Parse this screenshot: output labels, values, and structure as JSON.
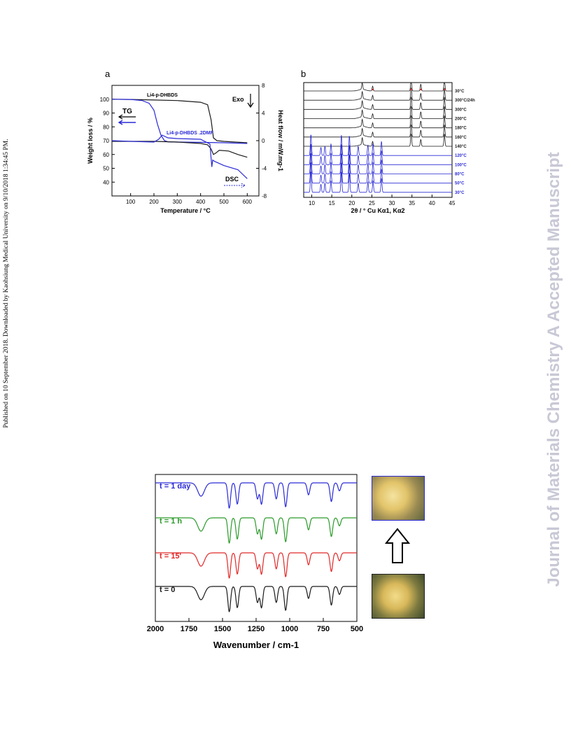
{
  "sidebar_left": "Published on 10 September 2018. Downloaded by Kaohsiung Medical University on 9/10/2018 1:34:45 PM.",
  "watermark": "Journal of Materials Chemistry A Accepted Manuscript",
  "colors": {
    "black": "#1a1a1a",
    "blue": "#2a2ad6",
    "green": "#2a9a2a",
    "red": "#e02828",
    "watermark": "#c8c8d6"
  },
  "chart_data": [
    {
      "panel_label": "a",
      "type": "line",
      "xlabel": "Temperature / °C",
      "ylabel_left": "Weight loss / %",
      "ylabel_right": "Heat flow / mW.mg-1",
      "xlim": [
        20,
        650
      ],
      "ylim_left": [
        30,
        110
      ],
      "ylim_right": [
        -8,
        8
      ],
      "x_ticks": [
        "100",
        "200",
        "300",
        "400",
        "500",
        "600"
      ],
      "y_ticks_left": [
        "100",
        "90",
        "80",
        "70",
        "60",
        "50",
        "40"
      ],
      "y_ticks_right": [
        "8",
        "4",
        "0",
        "-4",
        "-8"
      ],
      "annotations": {
        "exo": "Exo",
        "tg": "TG",
        "dsc": "DSC",
        "label1": "Li4-p-DHBDS",
        "label2": "Li4-p-DHBDS .2DMF"
      },
      "series": [
        {
          "name": "Li4-p-DHBDS",
          "axis": "left",
          "color": "black",
          "x": [
            20,
            100,
            200,
            300,
            400,
            430,
            445,
            455,
            470,
            500,
            600
          ],
          "y": [
            100,
            99.8,
            99.4,
            99,
            97.8,
            96,
            85,
            72,
            70,
            69.5,
            68.5
          ]
        },
        {
          "name": "Li4-p-DHBDS .2DMF",
          "axis": "left",
          "color": "blue",
          "x": [
            20,
            100,
            150,
            180,
            200,
            215,
            230,
            245,
            260,
            300,
            400,
            500,
            600
          ],
          "y": [
            100,
            99.8,
            99,
            97,
            92,
            82,
            74,
            70,
            69.2,
            69,
            68.8,
            68.5,
            68
          ]
        },
        {
          "name": "DSC Li4-p-DHBDS",
          "axis": "right",
          "color": "black",
          "x": [
            20,
            200,
            300,
            400,
            430,
            445,
            455,
            465,
            480,
            520,
            560,
            600
          ],
          "y": [
            -0.1,
            -0.1,
            -0.2,
            -0.4,
            -0.6,
            -1.2,
            -2,
            -1.8,
            -1.4,
            -1.5,
            -2,
            -2.4
          ]
        },
        {
          "name": "DSC Li4-p-DHBDS .2DMF",
          "axis": "right",
          "color": "blue",
          "x": [
            20,
            100,
            200,
            220,
            235,
            260,
            300,
            400,
            440,
            448,
            452,
            460,
            500,
            560,
            600
          ],
          "y": [
            0,
            -0.1,
            -0.2,
            0.2,
            0.8,
            0.4,
            0.3,
            0.2,
            -0.5,
            -3.8,
            -2.8,
            -3,
            -3.6,
            -4.2,
            -5.5
          ]
        }
      ]
    },
    {
      "panel_label": "b",
      "type": "line",
      "xlabel": "2θ / ° Cu Kα1, Kα2",
      "xlim": [
        8,
        45
      ],
      "x_ticks": [
        "10",
        "15",
        "20",
        "25",
        "30",
        "35",
        "40",
        "45"
      ],
      "temperatures": [
        "30°C",
        "300°C/24h",
        "300°C",
        "200°C",
        "180°C",
        "160°C",
        "140°C",
        "120°C",
        "100°C",
        "80°C",
        "50°C",
        "30°C"
      ],
      "trace_colors": [
        "black",
        "black",
        "black",
        "black",
        "black",
        "black",
        "black",
        "blue",
        "blue",
        "blue",
        "blue",
        "blue"
      ],
      "peaks_black": [
        [
          22.6,
          0.5
        ],
        [
          25.2,
          0.35
        ],
        [
          34.8,
          0.9
        ],
        [
          37.2,
          0.5
        ],
        [
          43.1,
          0.9
        ]
      ],
      "peaks_blue": [
        [
          9.8,
          0.95
        ],
        [
          12.3,
          0.35
        ],
        [
          13.3,
          0.4
        ],
        [
          14.8,
          0.5
        ],
        [
          17.4,
          0.9
        ],
        [
          19.4,
          0.85
        ],
        [
          21.6,
          0.4
        ],
        [
          24,
          0.45
        ],
        [
          25.3,
          0.5
        ],
        [
          27.4,
          0.6
        ]
      ]
    },
    {
      "type": "line",
      "xlabel": "Wavenumber / cm-1",
      "xlim": [
        2000,
        500
      ],
      "x_ticks": [
        "2000",
        "1750",
        "1500",
        "1250",
        "1000",
        "750",
        "500"
      ],
      "series": [
        {
          "name": "t = 1 day",
          "color": "blue"
        },
        {
          "name": "t = 1 h",
          "color": "green"
        },
        {
          "name": "t = 15'",
          "color": "red"
        },
        {
          "name": "t = 0",
          "color": "black"
        }
      ],
      "bands": [
        [
          1660,
          0.5
        ],
        [
          1450,
          0.95
        ],
        [
          1390,
          0.8
        ],
        [
          1240,
          0.6
        ],
        [
          1210,
          0.8
        ],
        [
          1100,
          0.6
        ],
        [
          1030,
          0.9
        ],
        [
          860,
          0.45
        ],
        [
          690,
          0.7
        ],
        [
          630,
          0.3
        ]
      ]
    }
  ]
}
